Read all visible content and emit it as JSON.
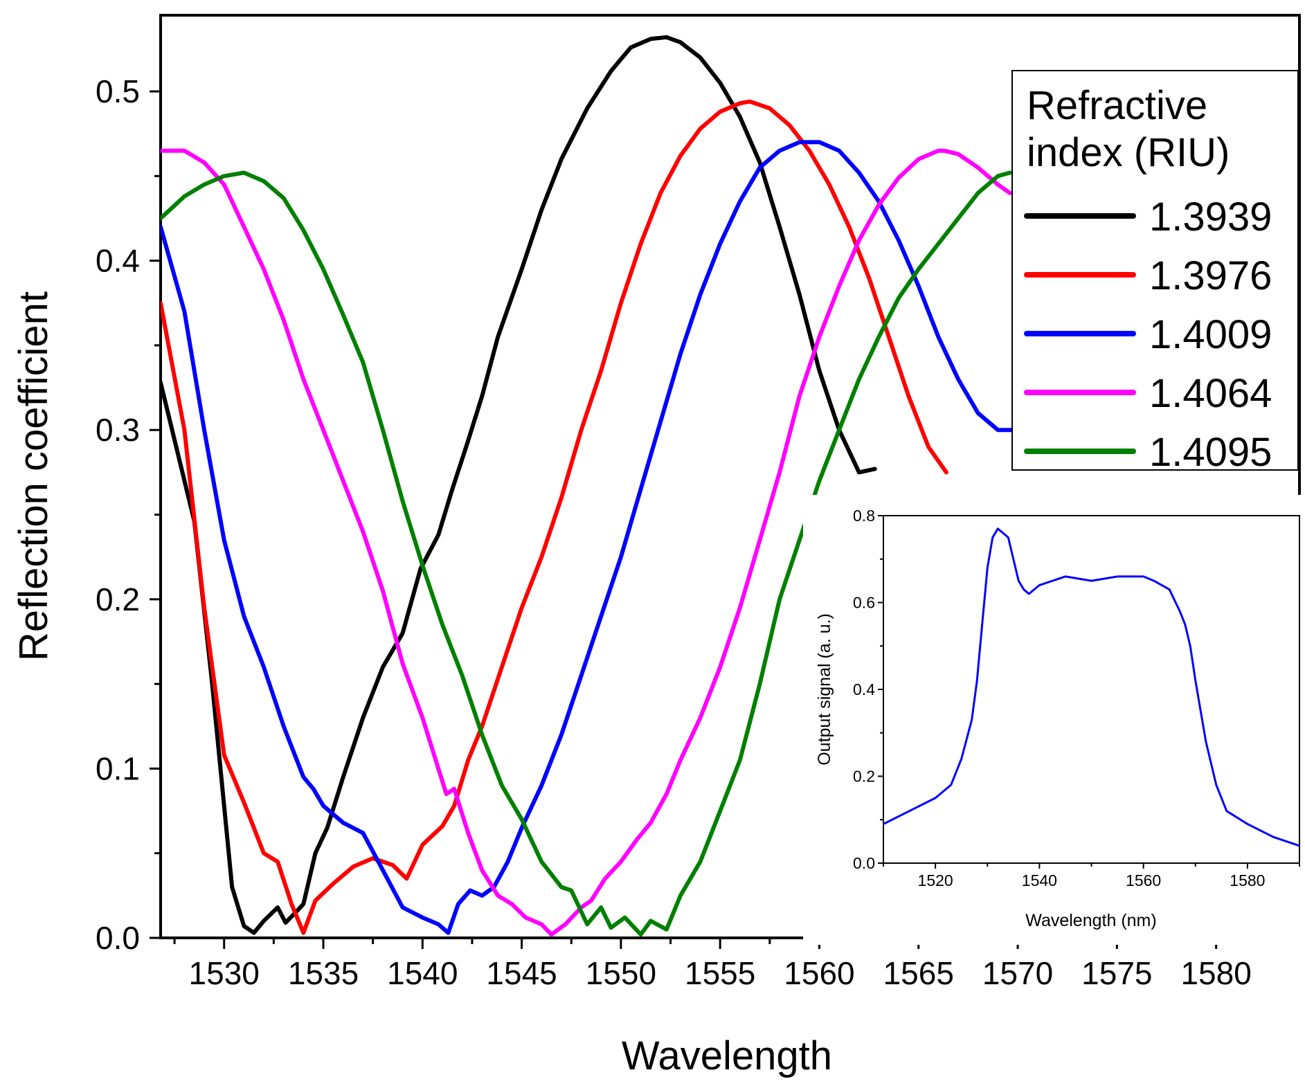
{
  "chart_data": [
    {
      "type": "line",
      "xlabel": "Wavelength",
      "ylabel": "Reflection coefficient",
      "xlim": [
        1526.8,
        1584.2
      ],
      "ylim": [
        0,
        0.545
      ],
      "xticks": [
        1530,
        1535,
        1540,
        1545,
        1550,
        1555,
        1560,
        1565,
        1570,
        1575,
        1580
      ],
      "xtick_labels": [
        "1530",
        "1535",
        "1540",
        "1545",
        "1550",
        "1555",
        "1560",
        "1565",
        "1570",
        "1575",
        "1580"
      ],
      "yticks": [
        0.0,
        0.1,
        0.2,
        0.3,
        0.4,
        0.5
      ],
      "ytick_labels": [
        "0.0",
        "0.1",
        "0.2",
        "0.3",
        "0.4",
        "0.5"
      ],
      "legend_title": "Refractive index (RIU)",
      "legend_title_lines": [
        "Refractive",
        "index (RIU)"
      ],
      "legend_position": "top-right",
      "series": [
        {
          "name": "1.3939",
          "color": "#000000",
          "x": [
            1526.8,
            1528.5,
            1529.4,
            1530.4,
            1531.0,
            1531.5,
            1532.0,
            1532.7,
            1533.1,
            1533.6,
            1534.0,
            1534.6,
            1535.2,
            1536.0,
            1537.0,
            1538.0,
            1539.0,
            1539.9,
            1540.8,
            1541.5,
            1542.2,
            1543.0,
            1543.8,
            1545.0,
            1546.0,
            1547.0,
            1548.3,
            1549.5,
            1550.5,
            1551.5,
            1552.3,
            1553.0,
            1554.0,
            1555.0,
            1556.0,
            1557.0,
            1558.0,
            1559.0,
            1560.0,
            1561.0,
            1562.0,
            1562.8
          ],
          "y": [
            0.328,
            0.246,
            0.15,
            0.03,
            0.007,
            0.003,
            0.01,
            0.018,
            0.009,
            0.015,
            0.02,
            0.05,
            0.065,
            0.095,
            0.13,
            0.16,
            0.18,
            0.218,
            0.238,
            0.265,
            0.29,
            0.32,
            0.355,
            0.395,
            0.43,
            0.46,
            0.49,
            0.512,
            0.526,
            0.531,
            0.532,
            0.529,
            0.52,
            0.505,
            0.485,
            0.458,
            0.42,
            0.38,
            0.335,
            0.3,
            0.275,
            0.277
          ]
        },
        {
          "name": "1.3976",
          "color": "#ff0000",
          "x": [
            1526.8,
            1528.0,
            1529.0,
            1530.0,
            1531.0,
            1532.0,
            1532.7,
            1533.4,
            1534.0,
            1534.6,
            1535.5,
            1536.5,
            1537.5,
            1538.5,
            1539.2,
            1540.0,
            1541.0,
            1541.6,
            1542.3,
            1543.0,
            1544.0,
            1545.0,
            1546.0,
            1547.0,
            1548.0,
            1549.0,
            1550.0,
            1551.0,
            1552.0,
            1553.0,
            1554.0,
            1555.0,
            1556.0,
            1556.5,
            1557.5,
            1558.5,
            1559.5,
            1560.5,
            1561.5,
            1562.5,
            1563.5,
            1564.5,
            1565.5,
            1566.4
          ],
          "y": [
            0.375,
            0.3,
            0.195,
            0.108,
            0.08,
            0.05,
            0.045,
            0.02,
            0.003,
            0.022,
            0.032,
            0.042,
            0.047,
            0.043,
            0.035,
            0.055,
            0.066,
            0.078,
            0.105,
            0.125,
            0.16,
            0.195,
            0.225,
            0.26,
            0.3,
            0.335,
            0.375,
            0.41,
            0.44,
            0.462,
            0.478,
            0.488,
            0.493,
            0.494,
            0.49,
            0.48,
            0.465,
            0.445,
            0.42,
            0.39,
            0.355,
            0.32,
            0.29,
            0.275
          ]
        },
        {
          "name": "1.4009",
          "color": "#0000ff",
          "x": [
            1526.8,
            1528.0,
            1529.0,
            1530.0,
            1531.0,
            1532.0,
            1533.0,
            1534.0,
            1534.5,
            1535.0,
            1536.0,
            1537.0,
            1538.0,
            1539.0,
            1540.0,
            1540.8,
            1541.3,
            1541.8,
            1542.4,
            1543.0,
            1543.6,
            1544.3,
            1545.0,
            1546.0,
            1547.0,
            1548.0,
            1549.0,
            1550.0,
            1551.0,
            1552.0,
            1553.0,
            1554.0,
            1555.0,
            1556.0,
            1557.0,
            1558.0,
            1559.0,
            1560.0,
            1561.0,
            1562.0,
            1563.0,
            1564.0,
            1565.0,
            1566.0,
            1567.0,
            1568.0,
            1569.0,
            1569.7
          ],
          "y": [
            0.42,
            0.37,
            0.3,
            0.235,
            0.19,
            0.16,
            0.125,
            0.095,
            0.088,
            0.078,
            0.068,
            0.062,
            0.04,
            0.018,
            0.012,
            0.008,
            0.003,
            0.02,
            0.028,
            0.025,
            0.03,
            0.045,
            0.065,
            0.09,
            0.12,
            0.155,
            0.19,
            0.225,
            0.265,
            0.305,
            0.345,
            0.38,
            0.41,
            0.435,
            0.455,
            0.465,
            0.47,
            0.47,
            0.465,
            0.452,
            0.435,
            0.412,
            0.385,
            0.355,
            0.33,
            0.31,
            0.3,
            0.3
          ]
        },
        {
          "name": "1.4064",
          "color": "#ff00ff",
          "x": [
            1526.8,
            1528.0,
            1529.0,
            1530.0,
            1531.0,
            1532.0,
            1533.0,
            1534.0,
            1535.0,
            1536.0,
            1537.0,
            1538.0,
            1539.0,
            1540.0,
            1540.8,
            1541.2,
            1541.6,
            1542.3,
            1543.0,
            1543.8,
            1544.5,
            1545.2,
            1546.0,
            1546.5,
            1547.2,
            1548.0,
            1548.5,
            1549.2,
            1550.0,
            1550.8,
            1551.5,
            1552.3,
            1553.0,
            1554.0,
            1555.0,
            1556.0,
            1557.0,
            1558.0,
            1559.0,
            1560.0,
            1561.0,
            1562.0,
            1563.0,
            1564.0,
            1565.0,
            1566.0,
            1566.3,
            1567.0,
            1568.0,
            1569.0,
            1569.6
          ],
          "y": [
            0.465,
            0.465,
            0.458,
            0.445,
            0.42,
            0.395,
            0.365,
            0.33,
            0.3,
            0.27,
            0.24,
            0.205,
            0.162,
            0.13,
            0.1,
            0.085,
            0.088,
            0.062,
            0.04,
            0.025,
            0.02,
            0.012,
            0.008,
            0.002,
            0.008,
            0.018,
            0.022,
            0.035,
            0.045,
            0.058,
            0.068,
            0.085,
            0.105,
            0.13,
            0.16,
            0.195,
            0.235,
            0.275,
            0.32,
            0.355,
            0.385,
            0.412,
            0.433,
            0.449,
            0.46,
            0.465,
            0.465,
            0.463,
            0.455,
            0.445,
            0.44
          ]
        },
        {
          "name": "1.4095",
          "color": "#008000",
          "x": [
            1526.8,
            1528.0,
            1529.0,
            1530.0,
            1531.0,
            1532.0,
            1533.0,
            1534.0,
            1535.0,
            1536.0,
            1537.0,
            1538.0,
            1539.0,
            1540.0,
            1541.0,
            1542.0,
            1543.0,
            1544.0,
            1545.0,
            1546.0,
            1547.0,
            1547.5,
            1548.3,
            1549.0,
            1549.5,
            1550.2,
            1551.0,
            1551.5,
            1552.3,
            1553.0,
            1554.0,
            1555.0,
            1556.0,
            1557.0,
            1558.0,
            1559.0,
            1560.0,
            1561.0,
            1562.0,
            1563.0,
            1564.0,
            1565.0,
            1566.0,
            1567.0,
            1568.0,
            1569.0,
            1569.6
          ],
          "y": [
            0.425,
            0.438,
            0.445,
            0.45,
            0.452,
            0.447,
            0.437,
            0.418,
            0.395,
            0.368,
            0.34,
            0.3,
            0.258,
            0.22,
            0.185,
            0.155,
            0.12,
            0.09,
            0.07,
            0.045,
            0.03,
            0.028,
            0.008,
            0.018,
            0.006,
            0.012,
            0.002,
            0.01,
            0.005,
            0.025,
            0.045,
            0.075,
            0.105,
            0.15,
            0.2,
            0.235,
            0.27,
            0.3,
            0.33,
            0.355,
            0.378,
            0.395,
            0.41,
            0.425,
            0.44,
            0.45,
            0.452
          ]
        }
      ]
    },
    {
      "type": "line",
      "xlabel": "Wavelength (nm)",
      "ylabel": "Output signal (a. u.)",
      "xlim": [
        1510,
        1590
      ],
      "ylim": [
        0,
        0.8
      ],
      "xticks": [
        1520,
        1540,
        1560,
        1580
      ],
      "xtick_labels": [
        "1520",
        "1540",
        "1560",
        "1580"
      ],
      "yticks": [
        0.0,
        0.2,
        0.4,
        0.6,
        0.8
      ],
      "ytick_labels": [
        "0.0",
        "0.2",
        "0.4",
        "0.6",
        "0.8"
      ],
      "series": [
        {
          "name": "output signal",
          "color": "#0000ff",
          "x": [
            1510,
            1515,
            1520,
            1523,
            1525,
            1527,
            1528,
            1529,
            1530,
            1531,
            1532,
            1533,
            1534,
            1535,
            1536,
            1537,
            1538,
            1540,
            1545,
            1550,
            1555,
            1560,
            1562,
            1565,
            1567,
            1568,
            1569,
            1570,
            1571,
            1572,
            1574,
            1576,
            1580,
            1585,
            1590
          ],
          "y": [
            0.09,
            0.12,
            0.15,
            0.18,
            0.24,
            0.33,
            0.42,
            0.55,
            0.68,
            0.75,
            0.77,
            0.76,
            0.75,
            0.7,
            0.65,
            0.63,
            0.62,
            0.64,
            0.66,
            0.65,
            0.66,
            0.66,
            0.65,
            0.63,
            0.58,
            0.55,
            0.5,
            0.42,
            0.35,
            0.28,
            0.18,
            0.12,
            0.09,
            0.06,
            0.04
          ]
        }
      ]
    }
  ]
}
